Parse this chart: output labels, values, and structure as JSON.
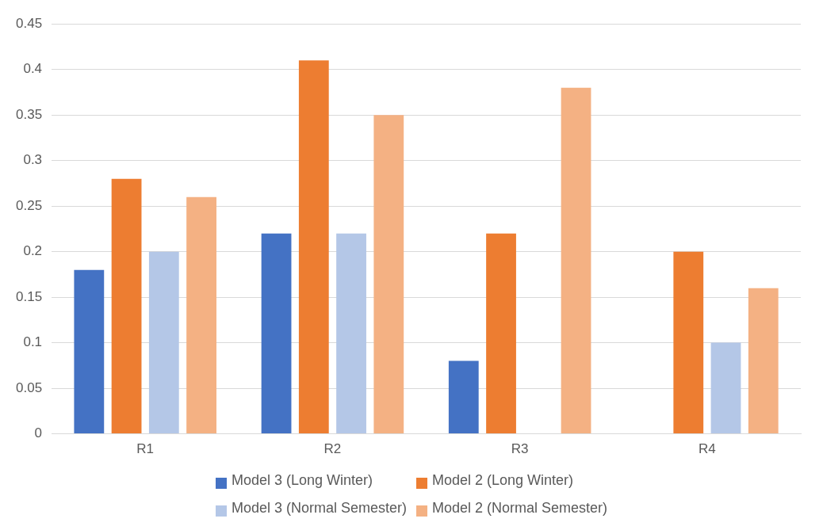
{
  "chart_data": {
    "type": "bar",
    "categories": [
      "R1",
      "R2",
      "R3",
      "R4"
    ],
    "series": [
      {
        "name": "Model 3 (Long Winter)",
        "color": "#4472c4",
        "values": [
          0.18,
          0.22,
          0.08,
          0
        ]
      },
      {
        "name": "Model 2 (Long Winter)",
        "color": "#ed7d31",
        "values": [
          0.28,
          0.41,
          0.22,
          0.2
        ]
      },
      {
        "name": "Model 3 (Normal Semester)",
        "color": "#b4c7e7",
        "values": [
          0.2,
          0.22,
          0,
          0.1
        ]
      },
      {
        "name": "Model 2 (Normal Semester)",
        "color": "#f4b183",
        "values": [
          0.26,
          0.35,
          0.38,
          0.16
        ]
      }
    ],
    "ylim": [
      0,
      0.45
    ],
    "yticks": [
      0,
      0.05,
      0.1,
      0.15,
      0.2,
      0.25,
      0.3,
      0.35,
      0.4,
      0.45
    ],
    "grid": "y",
    "legend": "bottom"
  }
}
